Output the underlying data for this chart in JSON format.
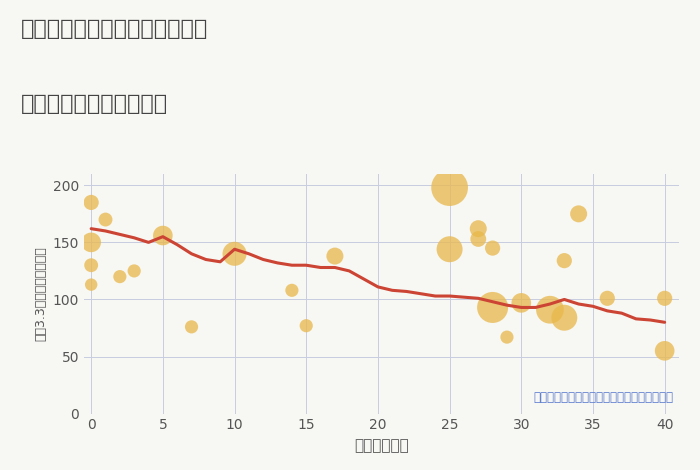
{
  "title_line1": "愛知県名古屋市中村区横前町の",
  "title_line2": "築年数別中古戸建て価格",
  "xlabel": "築年数（年）",
  "ylabel": "坪（3.3㎡）単価（万円）",
  "annotation": "円の大きさは、取引のあった物件面積を示す",
  "background_color": "#f7f7f3",
  "plot_bg_color": "#f7f7f3",
  "ylim": [
    0,
    210
  ],
  "xlim": [
    -0.5,
    41
  ],
  "yticks": [
    0,
    50,
    100,
    150,
    200
  ],
  "xticks": [
    0,
    5,
    10,
    15,
    20,
    25,
    30,
    35,
    40
  ],
  "line_color": "#cc4433",
  "line_x": [
    0,
    1,
    2,
    3,
    4,
    5,
    6,
    7,
    8,
    9,
    10,
    11,
    12,
    13,
    14,
    15,
    16,
    17,
    18,
    19,
    20,
    21,
    22,
    23,
    24,
    25,
    26,
    27,
    28,
    29,
    30,
    31,
    32,
    33,
    34,
    35,
    36,
    37,
    38,
    39,
    40
  ],
  "line_y": [
    162,
    160,
    157,
    154,
    150,
    155,
    148,
    140,
    135,
    133,
    144,
    140,
    135,
    132,
    130,
    130,
    128,
    128,
    125,
    118,
    111,
    108,
    107,
    105,
    103,
    103,
    102,
    101,
    98,
    95,
    93,
    93,
    96,
    100,
    96,
    94,
    90,
    88,
    83,
    82,
    80
  ],
  "scatter_x": [
    0,
    0,
    0,
    0,
    1,
    2,
    3,
    5,
    7,
    10,
    14,
    17,
    15,
    25,
    25,
    27,
    27,
    28,
    28,
    29,
    30,
    32,
    33,
    33,
    34,
    36,
    40,
    40
  ],
  "scatter_y": [
    185,
    150,
    130,
    113,
    170,
    120,
    125,
    156,
    76,
    140,
    108,
    138,
    77,
    144,
    198,
    162,
    153,
    145,
    93,
    67,
    97,
    91,
    84,
    134,
    175,
    101,
    101,
    55
  ],
  "scatter_size": [
    120,
    200,
    100,
    80,
    100,
    90,
    90,
    200,
    90,
    300,
    90,
    150,
    90,
    350,
    700,
    150,
    130,
    120,
    500,
    90,
    200,
    400,
    350,
    120,
    150,
    120,
    120,
    200
  ],
  "scatter_color": "#e8b84b",
  "scatter_alpha": 0.75,
  "grid_color": "#c8cce0",
  "title_color": "#444444",
  "axis_color": "#555555",
  "annotation_color": "#5577cc"
}
